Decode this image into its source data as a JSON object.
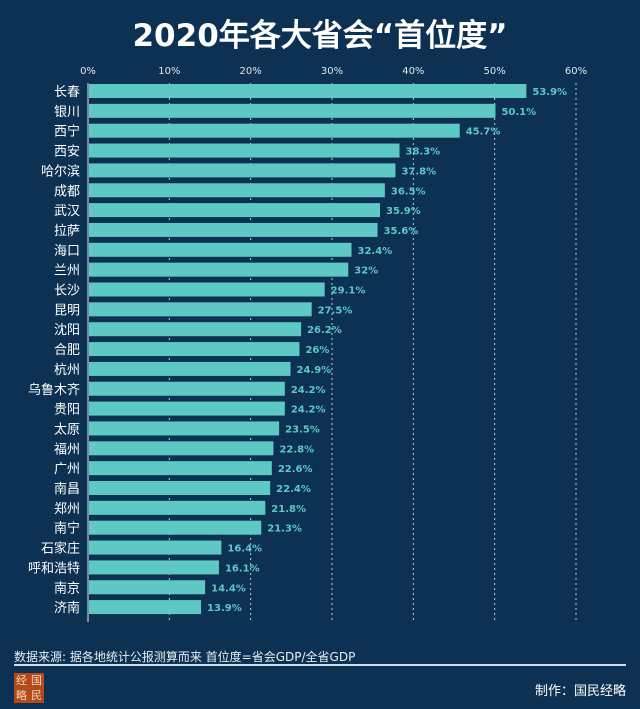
{
  "chart_data": {
    "type": "bar",
    "orientation": "horizontal",
    "title": "2020年各大省会“首位度”",
    "categories": [
      "长春",
      "银川",
      "西宁",
      "西安",
      "哈尔滨",
      "成都",
      "武汉",
      "拉萨",
      "海口",
      "兰州",
      "长沙",
      "昆明",
      "沈阳",
      "合肥",
      "杭州",
      "乌鲁木齐",
      "贵阳",
      "太原",
      "福州",
      "广州",
      "南昌",
      "郑州",
      "南宁",
      "石家庄",
      "呼和浩特",
      "南京",
      "济南"
    ],
    "values": [
      53.9,
      50.1,
      45.7,
      38.3,
      37.8,
      36.5,
      35.9,
      35.6,
      32.4,
      32,
      29.1,
      27.5,
      26.2,
      26,
      24.9,
      24.2,
      24.2,
      23.5,
      22.8,
      22.6,
      22.4,
      21.8,
      21.3,
      16.4,
      16.1,
      14.4,
      13.9
    ],
    "value_labels": [
      "53.9%",
      "50.1%",
      "45.7%",
      "38.3%",
      "37.8%",
      "36.5%",
      "35.9%",
      "35.6%",
      "32.4%",
      "32%",
      "29.1%",
      "27.5%",
      "26.2%",
      "26%",
      "24.9%",
      "24.2%",
      "24.2%",
      "23.5%",
      "22.8%",
      "22.6%",
      "22.4%",
      "21.8%",
      "21.3%",
      "16.4%",
      "16.1%",
      "14.4%",
      "13.9%"
    ],
    "xlim": [
      0,
      60
    ],
    "xticks": [
      "0%",
      "10%",
      "20%",
      "30%",
      "40%",
      "50%",
      "60%"
    ],
    "grid": true,
    "axis_position": "top",
    "bar_color": "#5ec8c4",
    "background": "#0c3152"
  },
  "footer": {
    "source": "数据来源: 据各地统计公报测算而来  首位度=省会GDP/全省GDP",
    "credit": "制作：国民经略",
    "logo_text": [
      "经",
      "国",
      "略",
      "民"
    ]
  }
}
